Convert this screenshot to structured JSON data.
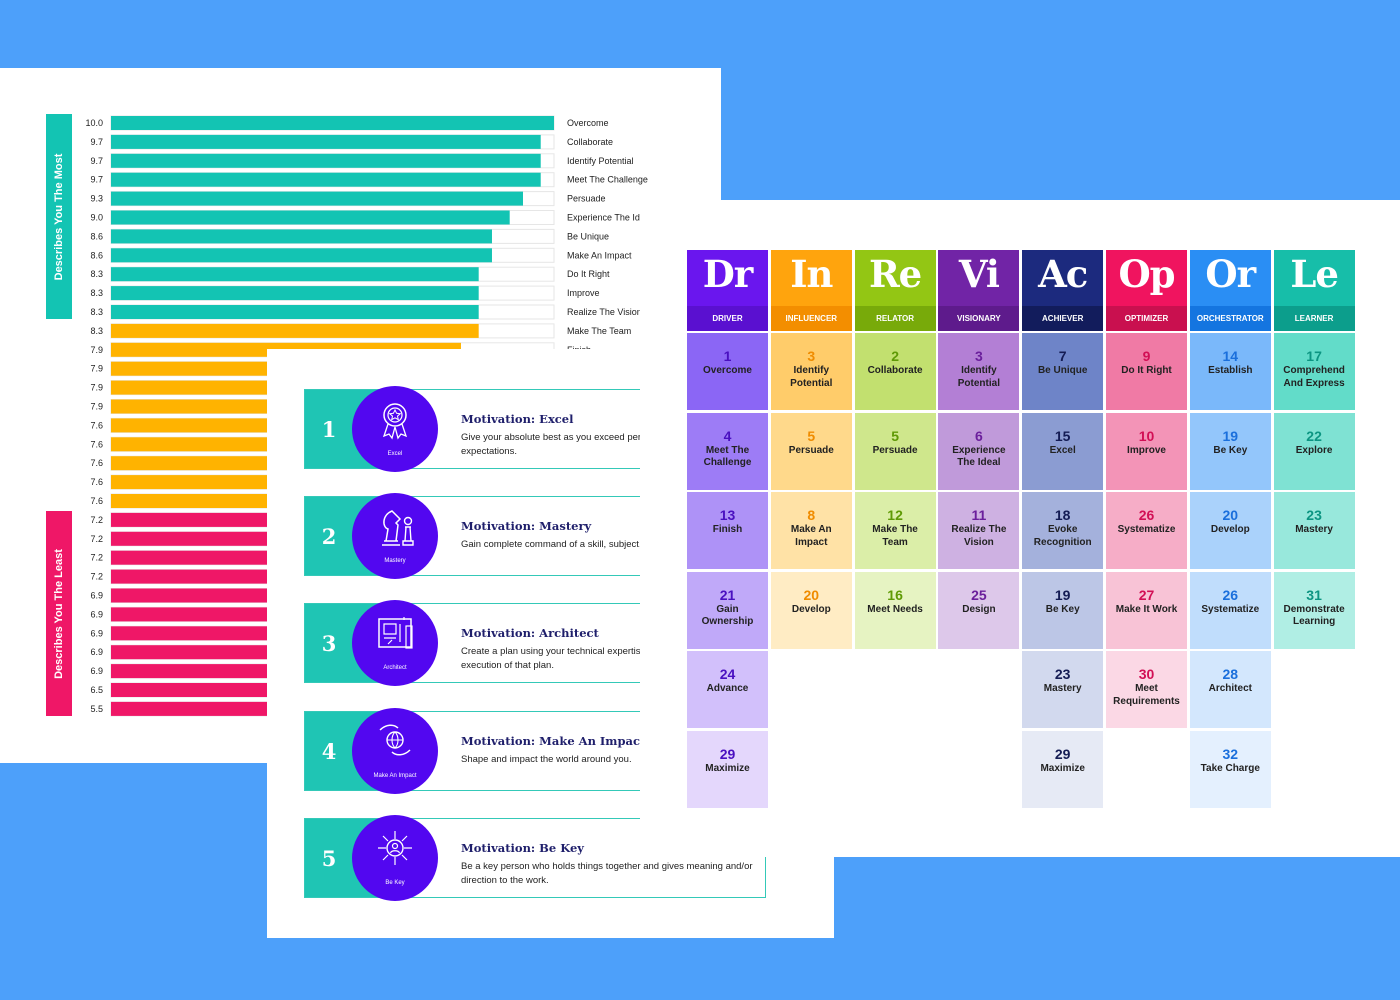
{
  "chart_data": {
    "type": "bar",
    "orientation": "horizontal",
    "xlim": [
      0,
      10
    ],
    "values": [
      10.0,
      9.7,
      9.7,
      9.7,
      9.3,
      9.0,
      8.6,
      8.6,
      8.3,
      8.3,
      8.3,
      8.3,
      7.9,
      7.9,
      7.9,
      7.9,
      7.6,
      7.6,
      7.6,
      7.6,
      7.6,
      7.2,
      7.2,
      7.2,
      7.2,
      6.9,
      6.9,
      6.9,
      6.9,
      6.9,
      6.5,
      5.5
    ],
    "value_labels": [
      "10.0",
      "9.7",
      "9.7",
      "9.7",
      "9.3",
      "9.0",
      "8.6",
      "8.6",
      "8.3",
      "8.3",
      "8.3",
      "8.3",
      "7.9",
      "7.9",
      "7.9",
      "7.9",
      "7.6",
      "7.6",
      "7.6",
      "7.6",
      "7.6",
      "7.2",
      "7.2",
      "7.2",
      "7.2",
      "6.9",
      "6.9",
      "6.9",
      "6.9",
      "6.9",
      "6.5",
      "5.5"
    ],
    "categories": [
      "Overcome",
      "Collaborate",
      "Identify Potential",
      "Meet The Challenge",
      "Persuade",
      "Experience The Ideal",
      "Be Unique",
      "Make An Impact",
      "Do It Right",
      "Improve",
      "Realize The Vision",
      "Make The Team",
      "Finish",
      "",
      "",
      "",
      "",
      "",
      "",
      "",
      "",
      "",
      "",
      "",
      "",
      "",
      "",
      "",
      "",
      "",
      "",
      ""
    ],
    "bar_colors": [
      "#13c4b3",
      "#13c4b3",
      "#13c4b3",
      "#13c4b3",
      "#13c4b3",
      "#13c4b3",
      "#13c4b3",
      "#13c4b3",
      "#13c4b3",
      "#13c4b3",
      "#13c4b3",
      "#ffb300",
      "#ffb300",
      "#ffb300",
      "#ffb300",
      "#ffb300",
      "#ffb300",
      "#ffb300",
      "#ffb300",
      "#ffb300",
      "#ffb300",
      "#ef1767",
      "#ef1767",
      "#ef1767",
      "#ef1767",
      "#ef1767",
      "#ef1767",
      "#ef1767",
      "#ef1767",
      "#ef1767",
      "#ef1767",
      "#ef1767"
    ],
    "groups": [
      {
        "label": "Describes You The Most",
        "color": "#13c4b3"
      },
      {
        "label": "Describes You The Least",
        "color": "#ef1767"
      }
    ]
  },
  "motivations": [
    {
      "num": "1",
      "icon": "ribbon-award-icon",
      "caption": "Excel",
      "title": "Motivation: Excel",
      "desc": "Give your absolute best as you exceed personal and professional expectations."
    },
    {
      "num": "2",
      "icon": "chess-pieces-icon",
      "caption": "Mastery",
      "title": "Motivation: Mastery",
      "desc": "Gain complete command of a skill, subject, or process."
    },
    {
      "num": "3",
      "icon": "blueprint-icon",
      "caption": "Architect",
      "title": "Motivation: Architect",
      "desc": "Create a plan using your technical expertise and oversee specialists in the execution of that plan."
    },
    {
      "num": "4",
      "icon": "globe-hands-icon",
      "caption": "Make An Impact",
      "title": "Motivation: Make An Impact",
      "desc": "Shape and impact the world around you."
    },
    {
      "num": "5",
      "icon": "person-hub-icon",
      "caption": "Be Key",
      "title": "Motivation: Be Key",
      "desc": "Be a key person who holds things together and gives meaning and/or direction to the work."
    }
  ],
  "table": {
    "columns": [
      {
        "symbol": "Dr",
        "name": "DRIVER",
        "color": "#6a16ee",
        "bar": "#5a10d0",
        "numcolor": "#4a10c0",
        "cells": [
          {
            "n": "1",
            "t": "Overcome",
            "bg": "#8b66f5"
          },
          {
            "n": "4",
            "t": "Meet The Challenge",
            "bg": "#9d7cf6"
          },
          {
            "n": "13",
            "t": "Finish",
            "bg": "#ae92f7"
          },
          {
            "n": "21",
            "t": "Gain Ownership",
            "bg": "#c0a9f9"
          },
          {
            "n": "24",
            "t": "Advance",
            "bg": "#d2c0fb"
          },
          {
            "n": "29",
            "t": "Maximize",
            "bg": "#e4d7fc"
          }
        ]
      },
      {
        "symbol": "In",
        "name": "INFLUENCER",
        "color": "#ffa40d",
        "bar": "#f38e00",
        "numcolor": "#f08c00",
        "cells": [
          {
            "n": "3",
            "t": "Identify Potential",
            "bg": "#ffcc6a"
          },
          {
            "n": "5",
            "t": "Persuade",
            "bg": "#ffd98b"
          },
          {
            "n": "8",
            "t": "Make An Impact",
            "bg": "#ffe2a6"
          },
          {
            "n": "20",
            "t": "Develop",
            "bg": "#ffecc4"
          }
        ]
      },
      {
        "symbol": "Re",
        "name": "RELATOR",
        "color": "#93c614",
        "bar": "#78aa0a",
        "numcolor": "#5f9a05",
        "cells": [
          {
            "n": "2",
            "t": "Collaborate",
            "bg": "#c2e06f"
          },
          {
            "n": "5",
            "t": "Persuade",
            "bg": "#cfe78c"
          },
          {
            "n": "12",
            "t": "Make The Team",
            "bg": "#dbeea8"
          },
          {
            "n": "16",
            "t": "Meet Needs",
            "bg": "#e6f3c2"
          }
        ]
      },
      {
        "symbol": "Vi",
        "name": "VISIONARY",
        "color": "#7124a6",
        "bar": "#5e1b8c",
        "numcolor": "#6b1f9c",
        "cells": [
          {
            "n": "3",
            "t": "Identify Potential",
            "bg": "#b37fd5"
          },
          {
            "n": "6",
            "t": "Experience The Ideal",
            "bg": "#c09ada"
          },
          {
            "n": "11",
            "t": "Realize The Vision",
            "bg": "#ceb1e2"
          },
          {
            "n": "25",
            "t": "Design",
            "bg": "#ddc8ea"
          }
        ]
      },
      {
        "symbol": "Ac",
        "name": "ACHIEVER",
        "color": "#1c2a7e",
        "bar": "#121c5c",
        "numcolor": "#141c54",
        "cells": [
          {
            "n": "7",
            "t": "Be Unique",
            "bg": "#6e84c8"
          },
          {
            "n": "15",
            "t": "Excel",
            "bg": "#8b9cd2"
          },
          {
            "n": "18",
            "t": "Evoke Recognition",
            "bg": "#a4b1dc"
          },
          {
            "n": "19",
            "t": "Be Key",
            "bg": "#bcc6e6"
          },
          {
            "n": "23",
            "t": "Mastery",
            "bg": "#d2d9ee"
          },
          {
            "n": "29",
            "t": "Maximize",
            "bg": "#e6eaf5"
          }
        ]
      },
      {
        "symbol": "Op",
        "name": "OPTIMIZER",
        "color": "#f0145f",
        "bar": "#c9104f",
        "numcolor": "#d20f55",
        "cells": [
          {
            "n": "9",
            "t": "Do It Right",
            "bg": "#f07aa5"
          },
          {
            "n": "10",
            "t": "Improve",
            "bg": "#f394b7"
          },
          {
            "n": "26",
            "t": "Systematize",
            "bg": "#f6adc7"
          },
          {
            "n": "27",
            "t": "Make It Work",
            "bg": "#f8c3d6"
          },
          {
            "n": "30",
            "t": "Meet Requirements",
            "bg": "#fbd8e5"
          }
        ]
      },
      {
        "symbol": "Or",
        "name": "ORCHESTRATOR",
        "color": "#2a8ef4",
        "bar": "#1475e0",
        "numcolor": "#1a6fdc",
        "cells": [
          {
            "n": "14",
            "t": "Establish",
            "bg": "#7ab8fa"
          },
          {
            "n": "19",
            "t": "Be Key",
            "bg": "#93c6fb"
          },
          {
            "n": "20",
            "t": "Develop",
            "bg": "#aad2fb"
          },
          {
            "n": "26",
            "t": "Systematize",
            "bg": "#c0ddfc"
          },
          {
            "n": "28",
            "t": "Architect",
            "bg": "#d3e7fd"
          },
          {
            "n": "32",
            "t": "Take Charge",
            "bg": "#e4f0fe"
          }
        ]
      },
      {
        "symbol": "Le",
        "name": "LEARNER",
        "color": "#17bea9",
        "bar": "#0c9e8c",
        "numcolor": "#0c9582",
        "cells": [
          {
            "n": "17",
            "t": "Comprehend And Express",
            "bg": "#62dcc9"
          },
          {
            "n": "22",
            "t": "Explore",
            "bg": "#7fe2d3"
          },
          {
            "n": "23",
            "t": "Mastery",
            "bg": "#98e8dc"
          },
          {
            "n": "31",
            "t": "Demonstrate Learning",
            "bg": "#b0eee4"
          }
        ]
      }
    ]
  }
}
